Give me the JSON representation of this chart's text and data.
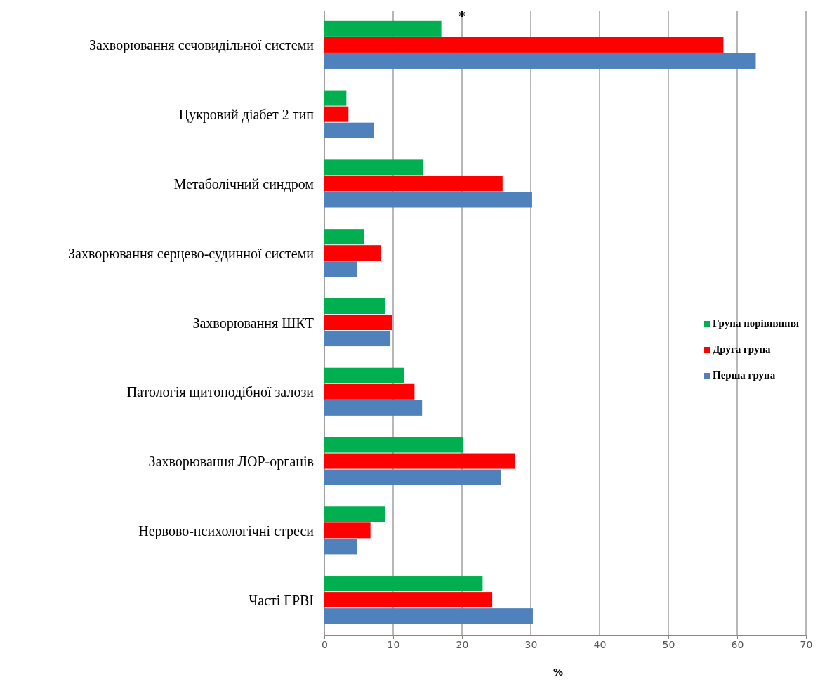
{
  "chart_data": {
    "type": "bar",
    "orientation": "horizontal",
    "xlabel": "%",
    "categories": [
      "Захворювання сечовидільної системи",
      "Цукровий діабет 2 тип",
      "Метаболічний синдром",
      "Захворювання серцево-судинної системи",
      "Захворювання ШКТ",
      "Патологія щитоподібної залози",
      "Захворювання ЛОР-органів",
      "Нервово-психологічні стреси",
      "Часті ГРВІ"
    ],
    "series": [
      {
        "name": "Група порівняння",
        "color": "#00b050",
        "values": [
          17,
          3.2,
          14.4,
          5.8,
          8.8,
          11.6,
          20.1,
          8.8,
          23
        ]
      },
      {
        "name": "Друга група",
        "color": "#ff0000",
        "values": [
          58,
          3.5,
          25.9,
          8.2,
          9.9,
          13.1,
          27.7,
          6.7,
          24.4
        ]
      },
      {
        "name": "Перша група",
        "color": "#4f81bd",
        "values": [
          62.7,
          7.2,
          30.2,
          4.8,
          9.6,
          14.2,
          25.7,
          4.8,
          30.3
        ]
      }
    ],
    "xlim": [
      0,
      70
    ],
    "xticks": [
      0,
      10,
      20,
      30,
      40,
      50,
      60,
      70
    ],
    "grid": "x",
    "legend": "right",
    "annotations": [
      "*"
    ]
  }
}
